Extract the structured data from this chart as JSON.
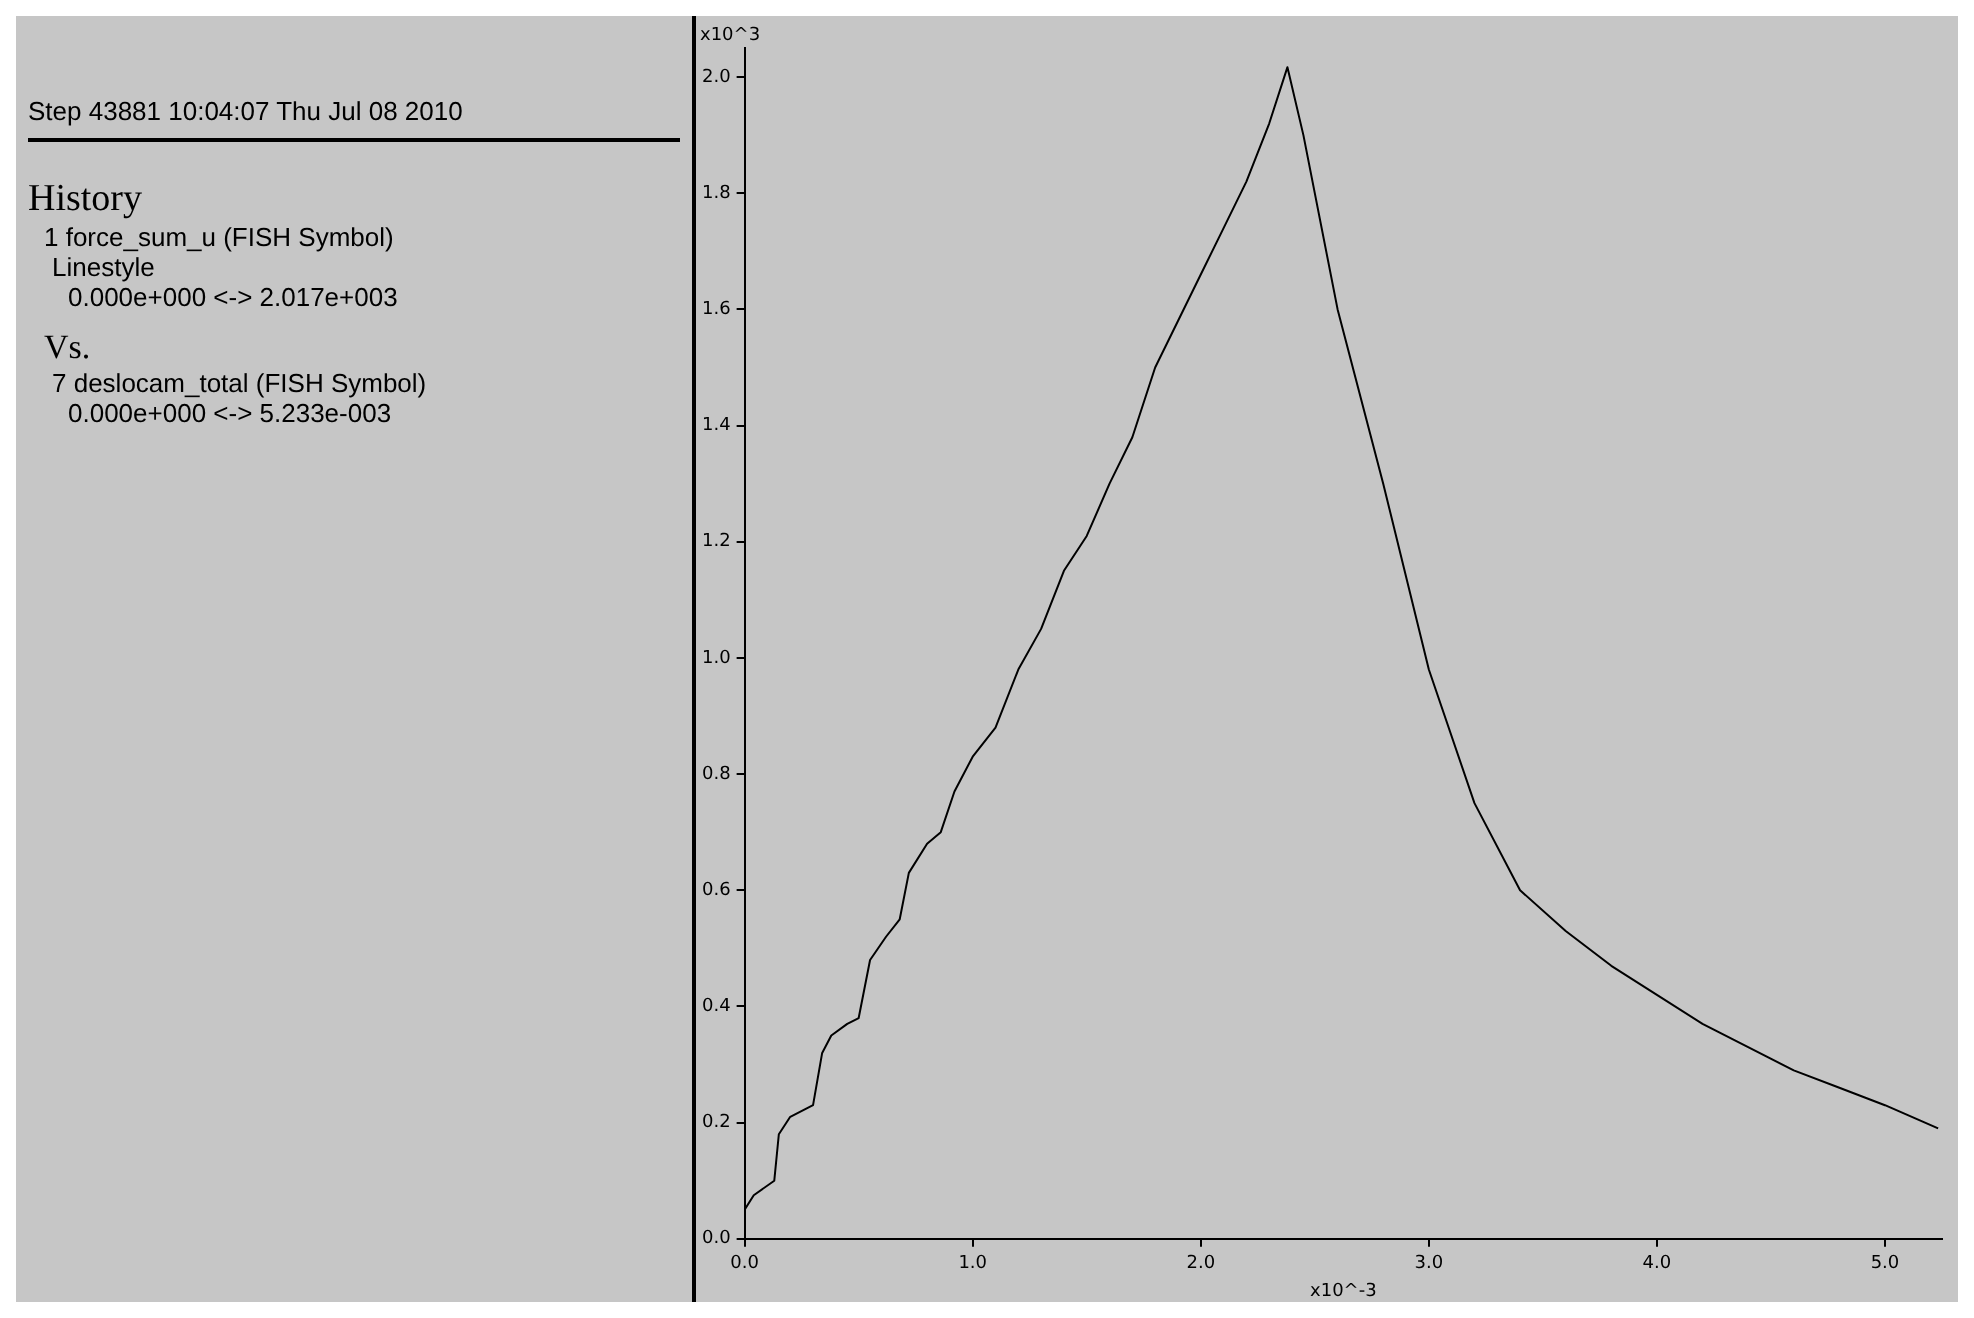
{
  "chart_data": {
    "type": "line",
    "xlabel": "x10^-3",
    "ylabel": "x10^3",
    "annotations": [
      "Step 43881  10:04:07 Thu Jul 08 2010",
      "History",
      "1 force_sum_u (FISH Symbol)",
      "Linestyle",
      "0.000e+000 <-> 2.017e+003",
      "Vs.",
      "7 deslocam_total (FISH Symbol)",
      "0.000e+000 <-> 5.233e-003"
    ],
    "x": [
      0,
      0.04,
      0.13,
      0.15,
      0.2,
      0.3,
      0.34,
      0.38,
      0.45,
      0.5,
      0.55,
      0.62,
      0.68,
      0.72,
      0.8,
      0.86,
      0.92,
      1.0,
      1.1,
      1.2,
      1.3,
      1.4,
      1.5,
      1.6,
      1.7,
      1.8,
      1.9,
      2.0,
      2.1,
      2.2,
      2.3,
      2.38,
      2.45,
      2.6,
      2.8,
      3.0,
      3.2,
      3.4,
      3.6,
      3.8,
      4.0,
      4.2,
      4.4,
      4.6,
      4.8,
      5.0,
      5.233
    ],
    "series": [
      {
        "color": "#000000",
        "values": [
          0.05,
          0.075,
          0.1,
          0.18,
          0.21,
          0.23,
          0.32,
          0.35,
          0.37,
          0.38,
          0.48,
          0.52,
          0.55,
          0.63,
          0.68,
          0.7,
          0.77,
          0.83,
          0.88,
          0.98,
          1.05,
          1.15,
          1.21,
          1.3,
          1.38,
          1.5,
          1.58,
          1.66,
          1.74,
          1.82,
          1.92,
          2.017,
          1.9,
          1.6,
          1.3,
          0.98,
          0.75,
          0.6,
          0.53,
          0.47,
          0.42,
          0.37,
          0.33,
          0.29,
          0.26,
          0.23,
          0.19
        ]
      }
    ],
    "xlim": [
      0,
      5.25
    ],
    "ylim": [
      0,
      2.05
    ],
    "xticks": [
      {
        "value": 0,
        "label": "0.0"
      },
      {
        "value": 1,
        "label": "1.0"
      },
      {
        "value": 2,
        "label": "2.0"
      },
      {
        "value": 3,
        "label": "3.0"
      },
      {
        "value": 4,
        "label": "4.0"
      },
      {
        "value": 5,
        "label": "5.0"
      }
    ],
    "yticks": [
      {
        "value": 0,
        "label": "0.0"
      },
      0.2,
      0.4,
      0.6,
      0.8,
      {
        "value": 1,
        "label": "1.0"
      },
      1.2,
      1.4,
      1.6,
      1.8,
      {
        "value": 2,
        "label": "2.0"
      }
    ],
    "grid": false,
    "legend": false,
    "marker": "none",
    "line_style": "solid"
  }
}
